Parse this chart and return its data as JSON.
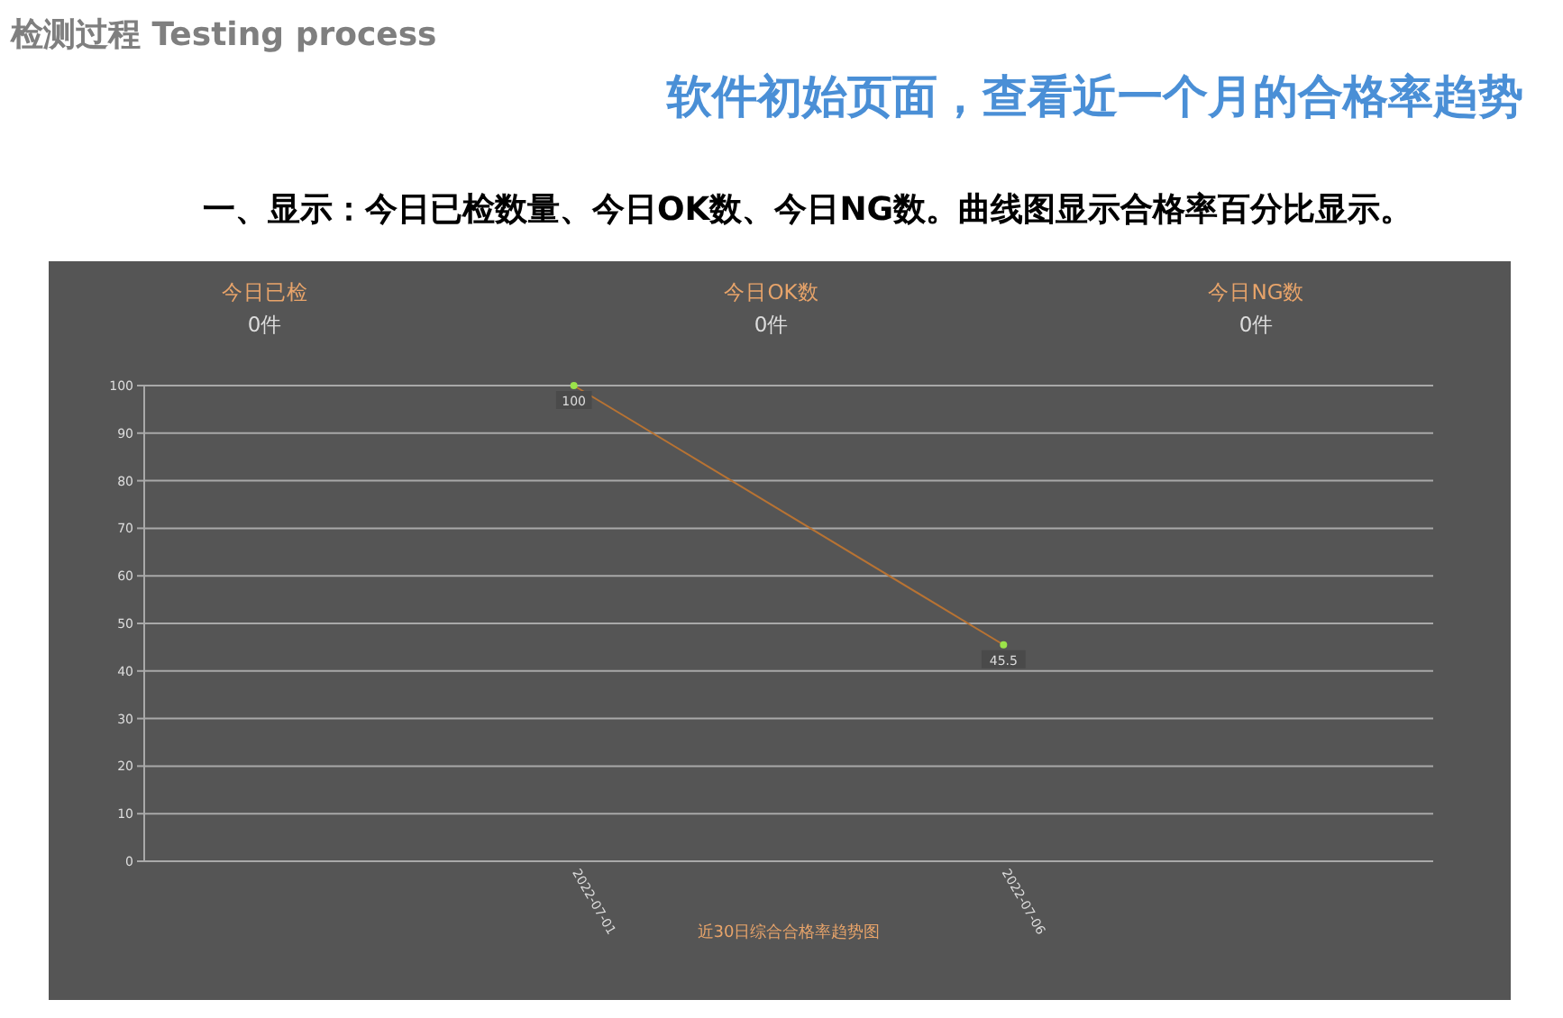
{
  "chart_data": [
    {
      "type": "other",
      "title": "检测过程 Testing process",
      "subtitle": "软件初始页面，查看近一个月的合格率趋势",
      "annotations": [
        "一、显示：今日已检数量、今日OK数、今日NG数。曲线图显示合格率百分比显示。"
      ]
    },
    {
      "type": "other",
      "annotations": [
        "今日已检",
        "0件",
        "今日OK数",
        "0件",
        "今日NG数",
        "0件"
      ]
    },
    {
      "type": "line",
      "xlabel": "近30日综合合格率趋势图",
      "categories": [
        null,
        "2022-07-01",
        "2022-07-06",
        null
      ],
      "series": [
        {
          "color": "#b87333",
          "values": [
            null,
            100,
            45.5,
            null
          ]
        }
      ],
      "ylim": [
        0,
        100
      ],
      "yticks": [
        0,
        10,
        20,
        30,
        40,
        50,
        60,
        70,
        80,
        90,
        100
      ],
      "grid": "y",
      "marker": "circle",
      "line_style": "solid",
      "data_labels": true
    }
  ]
}
